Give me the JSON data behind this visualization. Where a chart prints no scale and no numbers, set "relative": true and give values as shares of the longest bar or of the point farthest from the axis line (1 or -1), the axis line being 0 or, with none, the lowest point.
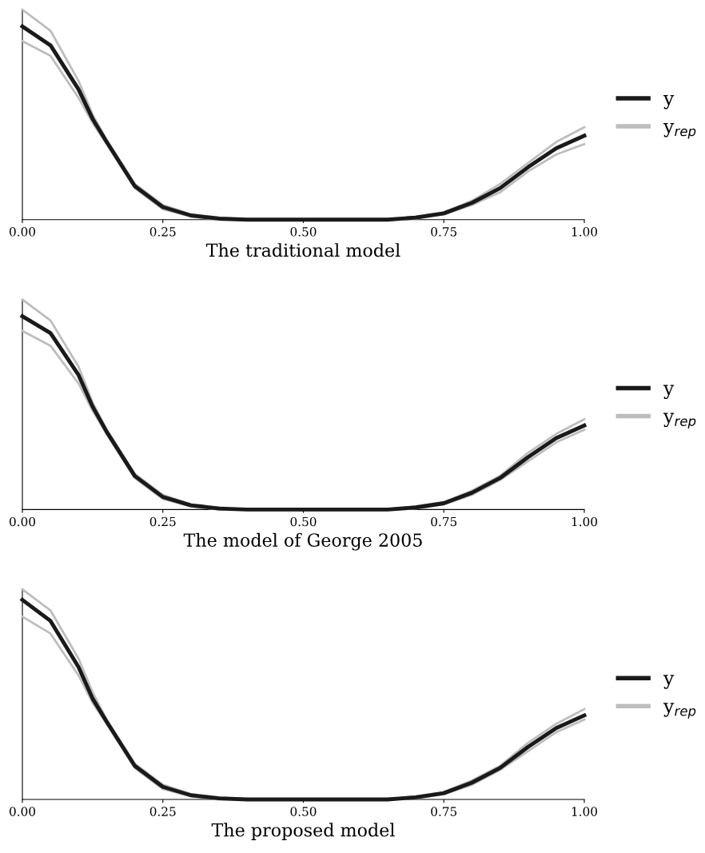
{
  "chart_data": [
    {
      "type": "line",
      "xlabel": "The traditional model",
      "relative": true,
      "legend": "right",
      "tick_labels": "x",
      "line_style": "solid",
      "x": [
        0,
        0.05,
        0.1,
        0.125,
        0.15,
        0.2,
        0.25,
        0.3,
        0.35,
        0.4,
        0.5,
        0.6,
        0.65,
        0.7,
        0.75,
        0.8,
        0.85,
        0.9,
        0.95,
        1.0
      ],
      "xlim": [
        0,
        1
      ],
      "xticks": [
        {
          "value": 0,
          "label": "0.00"
        },
        {
          "value": 0.25,
          "label": "0.25"
        },
        {
          "value": 0.5,
          "label": "0.50"
        },
        {
          "value": 0.75,
          "label": "0.75"
        },
        {
          "value": 1,
          "label": "1.00"
        }
      ],
      "series": [
        {
          "name": "y",
          "color": "#1a1a1a",
          "values": [
            0.92,
            0.83,
            0.62,
            0.48,
            0.37,
            0.16,
            0.06,
            0.02,
            0.005,
            0,
            0,
            0,
            0,
            0.01,
            0.03,
            0.08,
            0.15,
            0.25,
            0.34,
            0.4
          ]
        },
        {
          "name": "y$_{rep}$",
          "color": "#bdbdbd",
          "values": [
            1.0,
            0.9,
            0.66,
            0.5,
            0.38,
            0.17,
            0.07,
            0.025,
            0.01,
            0,
            0,
            0,
            0,
            0.015,
            0.035,
            0.09,
            0.17,
            0.27,
            0.37,
            0.44
          ]
        },
        {
          "color": "#bdbdbd",
          "values": [
            0.85,
            0.78,
            0.58,
            0.46,
            0.36,
            0.15,
            0.05,
            0.015,
            0,
            0,
            0,
            0,
            0,
            0.005,
            0.025,
            0.07,
            0.13,
            0.23,
            0.31,
            0.36
          ]
        }
      ]
    },
    {
      "type": "line",
      "xlabel": "The model of George 2005",
      "relative": true,
      "legend": "right",
      "tick_labels": "x",
      "line_style": "solid",
      "x": [
        0,
        0.05,
        0.1,
        0.125,
        0.15,
        0.2,
        0.25,
        0.3,
        0.35,
        0.4,
        0.5,
        0.6,
        0.65,
        0.7,
        0.75,
        0.8,
        0.85,
        0.9,
        0.95,
        1.0
      ],
      "xlim": [
        0,
        1
      ],
      "xticks": [
        {
          "value": 0,
          "label": "0.00"
        },
        {
          "value": 0.25,
          "label": "0.25"
        },
        {
          "value": 0.5,
          "label": "0.50"
        },
        {
          "value": 0.75,
          "label": "0.75"
        },
        {
          "value": 1,
          "label": "1.00"
        }
      ],
      "series": [
        {
          "name": "y",
          "color": "#1a1a1a",
          "values": [
            0.92,
            0.84,
            0.64,
            0.49,
            0.37,
            0.16,
            0.06,
            0.02,
            0.005,
            0,
            0,
            0,
            0,
            0.01,
            0.03,
            0.08,
            0.15,
            0.25,
            0.34,
            0.4
          ]
        },
        {
          "name": "y$_{rep}$",
          "color": "#bdbdbd",
          "values": [
            1.0,
            0.9,
            0.68,
            0.51,
            0.38,
            0.17,
            0.07,
            0.025,
            0.01,
            0,
            0,
            0,
            0,
            0.015,
            0.035,
            0.09,
            0.16,
            0.27,
            0.36,
            0.43
          ]
        },
        {
          "color": "#bdbdbd",
          "values": [
            0.85,
            0.78,
            0.6,
            0.47,
            0.36,
            0.15,
            0.05,
            0.015,
            0,
            0,
            0,
            0,
            0,
            0.005,
            0.025,
            0.07,
            0.14,
            0.23,
            0.32,
            0.38
          ]
        }
      ]
    },
    {
      "type": "line",
      "xlabel": "The proposed model",
      "relative": true,
      "legend": "right",
      "tick_labels": "x",
      "line_style": "solid",
      "x": [
        0,
        0.05,
        0.1,
        0.125,
        0.15,
        0.2,
        0.25,
        0.3,
        0.35,
        0.4,
        0.5,
        0.6,
        0.65,
        0.7,
        0.75,
        0.8,
        0.85,
        0.9,
        0.95,
        1.0
      ],
      "xlim": [
        0,
        1
      ],
      "xticks": [
        {
          "value": 0,
          "label": "0.00"
        },
        {
          "value": 0.25,
          "label": "0.25"
        },
        {
          "value": 0.5,
          "label": "0.50"
        },
        {
          "value": 0.75,
          "label": "0.75"
        },
        {
          "value": 1,
          "label": "1.00"
        }
      ],
      "series": [
        {
          "name": "y",
          "color": "#1a1a1a",
          "values": [
            0.95,
            0.85,
            0.63,
            0.48,
            0.37,
            0.16,
            0.06,
            0.02,
            0.005,
            0,
            0,
            0,
            0,
            0.01,
            0.03,
            0.08,
            0.15,
            0.25,
            0.34,
            0.4
          ]
        },
        {
          "name": "y$_{rep}$",
          "color": "#bdbdbd",
          "values": [
            1.0,
            0.9,
            0.67,
            0.51,
            0.38,
            0.17,
            0.07,
            0.025,
            0.01,
            0,
            0,
            0,
            0,
            0.015,
            0.035,
            0.09,
            0.16,
            0.27,
            0.36,
            0.43
          ]
        },
        {
          "color": "#bdbdbd",
          "values": [
            0.87,
            0.79,
            0.59,
            0.46,
            0.36,
            0.15,
            0.05,
            0.015,
            0,
            0,
            0,
            0,
            0,
            0.005,
            0.025,
            0.07,
            0.14,
            0.23,
            0.32,
            0.38
          ]
        }
      ]
    }
  ]
}
